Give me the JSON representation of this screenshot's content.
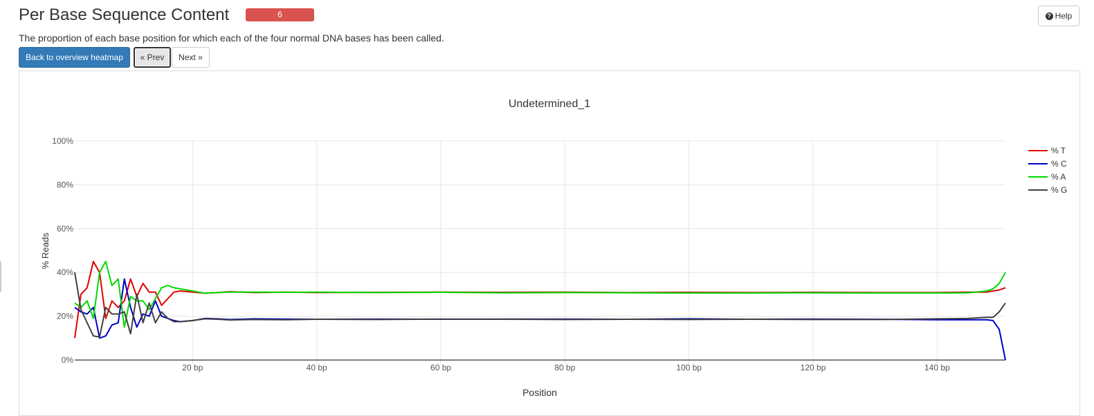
{
  "header": {
    "title": "Per Base Sequence Content",
    "badge": "6",
    "help_label": "Help",
    "description": "The proportion of each base position for which each of the four normal DNA bases has been called."
  },
  "nav": {
    "back_label": "Back to overview heatmap",
    "prev_label": "« Prev",
    "next_label": "Next »"
  },
  "colors": {
    "T": "#e00000",
    "C": "#0000c8",
    "A": "#00d800",
    "G": "#404040",
    "badge": "#d9534f",
    "primary": "#337ab7"
  },
  "chart_data": {
    "type": "line",
    "title": "Undetermined_1",
    "xlabel": "Position",
    "ylabel": "% Reads",
    "xlim": [
      1,
      151
    ],
    "ylim": [
      0,
      100
    ],
    "x_ticks": [
      20,
      40,
      60,
      80,
      100,
      120,
      140
    ],
    "x_tick_labels": [
      "20 bp",
      "40 bp",
      "60 bp",
      "80 bp",
      "100 bp",
      "120 bp",
      "140 bp"
    ],
    "y_ticks": [
      0,
      20,
      40,
      60,
      80,
      100
    ],
    "y_tick_labels": [
      "0%",
      "20%",
      "40%",
      "60%",
      "80%",
      "100%"
    ],
    "grid": true,
    "legend_position": "top-right",
    "series": [
      {
        "name": "% T",
        "points": [
          [
            1,
            10
          ],
          [
            2,
            30
          ],
          [
            3,
            33
          ],
          [
            4,
            45
          ],
          [
            5,
            40
          ],
          [
            6,
            19
          ],
          [
            7,
            27
          ],
          [
            8,
            24
          ],
          [
            9,
            27
          ],
          [
            10,
            37
          ],
          [
            11,
            29
          ],
          [
            12,
            35
          ],
          [
            13,
            31
          ],
          [
            14,
            31
          ],
          [
            15,
            25
          ],
          [
            16,
            28
          ],
          [
            17,
            31
          ],
          [
            18,
            31.5
          ],
          [
            20,
            31
          ],
          [
            22,
            30.5
          ],
          [
            24,
            30.8
          ],
          [
            26,
            31.2
          ],
          [
            30,
            30.8
          ],
          [
            35,
            31
          ],
          [
            40,
            30.8
          ],
          [
            50,
            30.9
          ],
          [
            60,
            31
          ],
          [
            70,
            30.9
          ],
          [
            80,
            31
          ],
          [
            90,
            30.8
          ],
          [
            100,
            30.9
          ],
          [
            110,
            30.8
          ],
          [
            120,
            30.9
          ],
          [
            130,
            30.8
          ],
          [
            140,
            30.8
          ],
          [
            145,
            31
          ],
          [
            148,
            31
          ],
          [
            150,
            32
          ],
          [
            151,
            33
          ]
        ]
      },
      {
        "name": "% C",
        "points": [
          [
            1,
            24
          ],
          [
            2,
            22
          ],
          [
            3,
            21
          ],
          [
            4,
            24
          ],
          [
            5,
            10
          ],
          [
            6,
            11
          ],
          [
            7,
            16
          ],
          [
            8,
            17
          ],
          [
            9,
            37
          ],
          [
            10,
            24
          ],
          [
            11,
            15
          ],
          [
            12,
            21
          ],
          [
            13,
            20
          ],
          [
            14,
            27
          ],
          [
            15,
            20
          ],
          [
            16,
            19
          ],
          [
            17,
            18
          ],
          [
            18,
            17.5
          ],
          [
            20,
            18
          ],
          [
            22,
            19
          ],
          [
            24,
            18.8
          ],
          [
            26,
            18.5
          ],
          [
            30,
            18.8
          ],
          [
            35,
            18.7
          ],
          [
            40,
            18.6
          ],
          [
            50,
            18.7
          ],
          [
            60,
            18.6
          ],
          [
            70,
            18.7
          ],
          [
            80,
            18.7
          ],
          [
            90,
            18.6
          ],
          [
            100,
            18.8
          ],
          [
            110,
            18.6
          ],
          [
            120,
            18.7
          ],
          [
            130,
            18.6
          ],
          [
            140,
            18.4
          ],
          [
            145,
            18.4
          ],
          [
            148,
            18.4
          ],
          [
            149,
            18
          ],
          [
            150,
            14
          ],
          [
            151,
            0
          ]
        ]
      },
      {
        "name": "% A",
        "points": [
          [
            1,
            26
          ],
          [
            2,
            24
          ],
          [
            3,
            27
          ],
          [
            4,
            19
          ],
          [
            5,
            40
          ],
          [
            6,
            45
          ],
          [
            7,
            34
          ],
          [
            8,
            37
          ],
          [
            9,
            15
          ],
          [
            10,
            29
          ],
          [
            11,
            27
          ],
          [
            12,
            27
          ],
          [
            13,
            23
          ],
          [
            14,
            28
          ],
          [
            15,
            33
          ],
          [
            16,
            34
          ],
          [
            17,
            33
          ],
          [
            18,
            32.5
          ],
          [
            20,
            31.5
          ],
          [
            22,
            30.5
          ],
          [
            24,
            30.8
          ],
          [
            26,
            31
          ],
          [
            30,
            31
          ],
          [
            35,
            30.9
          ],
          [
            40,
            31
          ],
          [
            50,
            30.8
          ],
          [
            60,
            30.9
          ],
          [
            70,
            30.7
          ],
          [
            80,
            30.8
          ],
          [
            90,
            30.7
          ],
          [
            100,
            30.6
          ],
          [
            110,
            30.6
          ],
          [
            120,
            30.7
          ],
          [
            130,
            30.6
          ],
          [
            140,
            30.6
          ],
          [
            145,
            30.7
          ],
          [
            148,
            31.5
          ],
          [
            149,
            32.5
          ],
          [
            150,
            35
          ],
          [
            151,
            40
          ]
        ]
      },
      {
        "name": "% G",
        "points": [
          [
            1,
            40
          ],
          [
            2,
            23
          ],
          [
            3,
            17
          ],
          [
            4,
            11
          ],
          [
            5,
            10.5
          ],
          [
            6,
            24
          ],
          [
            7,
            21
          ],
          [
            8,
            21
          ],
          [
            9,
            22
          ],
          [
            10,
            12
          ],
          [
            11,
            30
          ],
          [
            12,
            17
          ],
          [
            13,
            26
          ],
          [
            14,
            17
          ],
          [
            15,
            22
          ],
          [
            16,
            19
          ],
          [
            17,
            17.5
          ],
          [
            18,
            17.5
          ],
          [
            20,
            18
          ],
          [
            22,
            18.8
          ],
          [
            24,
            18.6
          ],
          [
            26,
            18.3
          ],
          [
            30,
            18.5
          ],
          [
            35,
            18.4
          ],
          [
            40,
            18.6
          ],
          [
            50,
            18.5
          ],
          [
            60,
            18.7
          ],
          [
            70,
            18.6
          ],
          [
            80,
            18.5
          ],
          [
            90,
            18.6
          ],
          [
            100,
            18.5
          ],
          [
            110,
            18.6
          ],
          [
            120,
            18.5
          ],
          [
            130,
            18.5
          ],
          [
            140,
            18.8
          ],
          [
            145,
            19
          ],
          [
            148,
            19.5
          ],
          [
            149,
            19.5
          ],
          [
            150,
            22
          ],
          [
            151,
            26
          ]
        ]
      }
    ]
  }
}
